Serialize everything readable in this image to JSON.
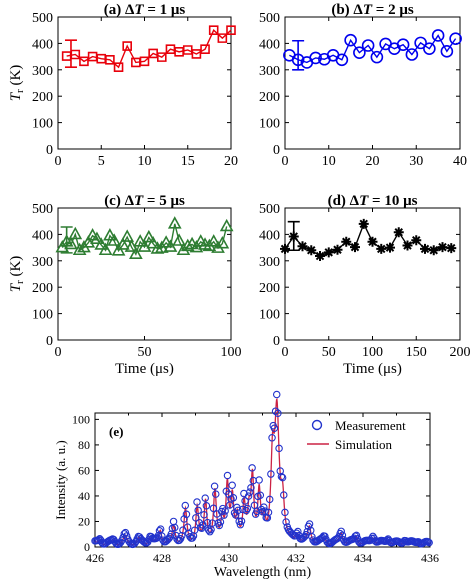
{
  "chart_data": [
    {
      "id": "a",
      "type": "line",
      "title": "(a) ΔT = 1 μs",
      "xlabel": "",
      "ylabel": "Tr (K)",
      "xlim": [
        0,
        20
      ],
      "ylim": [
        0,
        500
      ],
      "xticks": [
        0,
        5,
        10,
        15,
        20
      ],
      "yticks": [
        0,
        100,
        200,
        300,
        400,
        500
      ],
      "grid": false,
      "marker": "square",
      "color": "#e8000b",
      "errorbar": {
        "x": 1.5,
        "y": 352,
        "lo": 310,
        "hi": 412
      },
      "series": [
        {
          "x": [
            1,
            2,
            3,
            4,
            5,
            6,
            7,
            8,
            9,
            10,
            11,
            12,
            13,
            14,
            15,
            16,
            17,
            18,
            19,
            20
          ],
          "values": [
            352,
            358,
            332,
            350,
            342,
            338,
            310,
            390,
            328,
            332,
            362,
            348,
            378,
            368,
            375,
            360,
            378,
            450,
            420,
            450
          ]
        }
      ]
    },
    {
      "id": "b",
      "type": "line",
      "title": "(b) ΔT = 2 μs",
      "xlabel": "",
      "ylabel": "",
      "xlim": [
        0,
        40
      ],
      "ylim": [
        0,
        500
      ],
      "xticks": [
        0,
        10,
        20,
        30,
        40
      ],
      "yticks": [
        0,
        100,
        200,
        300,
        400,
        500
      ],
      "grid": false,
      "marker": "circle",
      "color": "#0000ee",
      "errorbar": {
        "x": 3,
        "y": 355,
        "lo": 300,
        "hi": 410
      },
      "series": [
        {
          "x": [
            1,
            3,
            5,
            7,
            9,
            11,
            13,
            15,
            17,
            19,
            21,
            23,
            25,
            27,
            29,
            31,
            33,
            35,
            37,
            39
          ],
          "values": [
            355,
            338,
            328,
            345,
            340,
            355,
            338,
            412,
            365,
            392,
            348,
            398,
            380,
            395,
            358,
            402,
            380,
            430,
            370,
            418
          ]
        }
      ]
    },
    {
      "id": "c",
      "type": "line",
      "title": "(c) ΔT = 5 μs",
      "xlabel": "Time (μs)",
      "ylabel": "Tr (K)",
      "xlim": [
        0,
        100
      ],
      "ylim": [
        0,
        500
      ],
      "xticks": [
        0,
        50,
        100
      ],
      "yticks": [
        0,
        100,
        200,
        300,
        400,
        500
      ],
      "grid": false,
      "marker": "triangle",
      "color": "#2e7d32",
      "errorbar": {
        "x": 5,
        "y": 372,
        "lo": 330,
        "hi": 428
      },
      "series": [
        {
          "x": [
            2.5,
            5,
            7.5,
            10,
            12.5,
            15,
            17.5,
            20,
            22.5,
            25,
            27.5,
            30,
            32.5,
            35,
            37.5,
            40,
            42.5,
            45,
            47.5,
            50,
            52.5,
            55,
            57.5,
            60,
            62.5,
            65,
            67.5,
            70,
            72.5,
            75,
            77.5,
            80,
            82.5,
            85,
            87.5,
            90,
            92.5,
            95,
            97.5
          ],
          "values": [
            350,
            372,
            362,
            400,
            340,
            350,
            368,
            395,
            382,
            360,
            340,
            395,
            375,
            338,
            360,
            390,
            352,
            325,
            372,
            352,
            388,
            365,
            345,
            348,
            368,
            352,
            440,
            375,
            340,
            355,
            362,
            350,
            372,
            360,
            355,
            372,
            348,
            365,
            430
          ]
        }
      ]
    },
    {
      "id": "d",
      "type": "line",
      "title": "(d) ΔT = 10 μs",
      "xlabel": "Time (μs)",
      "ylabel": "",
      "xlim": [
        0,
        200
      ],
      "ylim": [
        0,
        500
      ],
      "xticks": [
        0,
        50,
        100,
        150,
        200
      ],
      "yticks": [
        0,
        100,
        200,
        300,
        400,
        500
      ],
      "grid": false,
      "marker": "star",
      "color": "#000000",
      "errorbar": {
        "x": 10,
        "y": 390,
        "lo": 340,
        "hi": 448
      },
      "series": [
        {
          "x": [
            0,
            10,
            20,
            30,
            40,
            50,
            60,
            70,
            80,
            90,
            100,
            110,
            120,
            130,
            140,
            150,
            160,
            170,
            180,
            190
          ],
          "values": [
            345,
            392,
            355,
            340,
            318,
            332,
            342,
            372,
            352,
            440,
            372,
            345,
            350,
            408,
            358,
            378,
            345,
            340,
            352,
            348
          ]
        }
      ]
    },
    {
      "id": "e",
      "type": "line",
      "title": "(e)",
      "xlabel": "Wavelength (nm)",
      "ylabel": "Intensity (a. u.)",
      "xlim": [
        426,
        436
      ],
      "ylim": [
        0,
        105
      ],
      "xticks": [
        426,
        428,
        430,
        432,
        434,
        436
      ],
      "xticks_minor": [
        427,
        429,
        431,
        433,
        435
      ],
      "yticks": [
        0,
        20,
        40,
        60,
        80,
        100
      ],
      "grid": false,
      "legend": "top-right",
      "series": [
        {
          "name": "Measurement",
          "marker": "circle",
          "color": "#2233cc",
          "peaks": [
            [
              426.15,
              4.5,
              0.06
            ],
            [
              426.55,
              3,
              0.06
            ],
            [
              426.9,
              7,
              0.06
            ],
            [
              427.3,
              4,
              0.06
            ],
            [
              427.65,
              6,
              0.06
            ],
            [
              427.95,
              12,
              0.05
            ],
            [
              428.35,
              16,
              0.05
            ],
            [
              428.7,
              27,
              0.05
            ],
            [
              429.05,
              30,
              0.05
            ],
            [
              429.3,
              34,
              0.05
            ],
            [
              429.58,
              41,
              0.05
            ],
            [
              429.8,
              21,
              0.05
            ],
            [
              429.95,
              45,
              0.05
            ],
            [
              430.1,
              35,
              0.05
            ],
            [
              430.25,
              22,
              0.05
            ],
            [
              430.45,
              30,
              0.05
            ],
            [
              430.6,
              23,
              0.05
            ],
            [
              430.7,
              51,
              0.05
            ],
            [
              430.9,
              39,
              0.05
            ],
            [
              431.05,
              15,
              0.05
            ],
            [
              431.3,
              60,
              0.06
            ],
            [
              431.43,
              100,
              0.08
            ],
            [
              431.6,
              32,
              0.06
            ],
            [
              432.05,
              8,
              0.05
            ],
            [
              432.4,
              14,
              0.06
            ],
            [
              432.85,
              5,
              0.06
            ],
            [
              433.35,
              10,
              0.06
            ],
            [
              433.8,
              7,
              0.06
            ],
            [
              434.3,
              7,
              0.06
            ],
            [
              434.75,
              5,
              0.06
            ],
            [
              435.25,
              4,
              0.06
            ],
            [
              435.65,
              3,
              0.06
            ]
          ],
          "baseline": 4
        },
        {
          "name": "Simulation",
          "marker": "none",
          "color": "#cc2244",
          "peaks": [
            [
              426.15,
              4,
              0.06
            ],
            [
              426.55,
              3,
              0.06
            ],
            [
              426.9,
              6,
              0.06
            ],
            [
              427.3,
              4,
              0.06
            ],
            [
              427.65,
              5,
              0.06
            ],
            [
              427.95,
              11,
              0.05
            ],
            [
              428.35,
              14,
              0.05
            ],
            [
              428.7,
              26,
              0.05
            ],
            [
              429.05,
              28,
              0.05
            ],
            [
              429.3,
              33,
              0.05
            ],
            [
              429.58,
              39,
              0.05
            ],
            [
              429.8,
              19,
              0.05
            ],
            [
              429.95,
              44,
              0.05
            ],
            [
              430.1,
              33,
              0.05
            ],
            [
              430.25,
              20,
              0.05
            ],
            [
              430.45,
              28,
              0.05
            ],
            [
              430.6,
              21,
              0.05
            ],
            [
              430.7,
              50,
              0.05
            ],
            [
              430.9,
              37,
              0.05
            ],
            [
              431.05,
              14,
              0.05
            ],
            [
              431.3,
              58,
              0.06
            ],
            [
              431.43,
              98,
              0.08
            ],
            [
              431.6,
              30,
              0.06
            ],
            [
              432.05,
              7,
              0.05
            ],
            [
              432.4,
              13,
              0.06
            ],
            [
              432.85,
              4,
              0.06
            ],
            [
              433.35,
              9,
              0.06
            ],
            [
              433.8,
              6,
              0.06
            ],
            [
              434.3,
              6,
              0.06
            ],
            [
              434.75,
              4,
              0.06
            ],
            [
              435.25,
              3,
              0.06
            ],
            [
              435.65,
              2,
              0.06
            ]
          ],
          "baseline": 3
        }
      ]
    }
  ]
}
